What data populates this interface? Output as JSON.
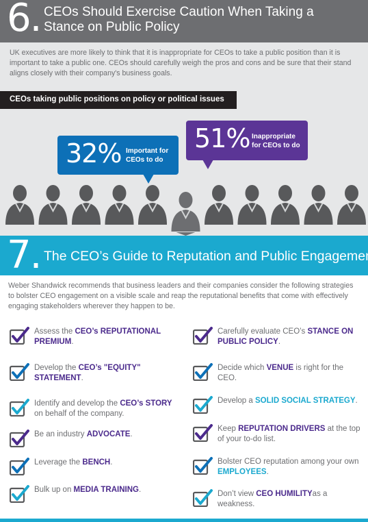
{
  "section6": {
    "number": "6.",
    "title": "CEOs Should Exercise Caution When Taking a Stance on Public Policy",
    "intro": "UK executives are more likely to think that it is inappropriate for CEOs to take a public position than it is important to take a public one. CEOs should carefully weigh the pros and cons and be sure that their stand aligns closely with their company's business goals.",
    "bar_label": "CEOs taking public positions on policy or political issues",
    "important": {
      "percent": "32%",
      "label_line1": "Important for",
      "label_line2": "CEOs to do",
      "color": "#0d70b7"
    },
    "inappropriate": {
      "percent": "51%",
      "label_line1": "Inappropriate",
      "label_line2": "for CEOs to do",
      "color": "#5b3596"
    },
    "people_count": 11
  },
  "section7": {
    "number": "7.",
    "title": "The CEO’s Guide to Reputation and Public Engagement",
    "intro": "Weber Shandwick recommends that business leaders and their companies consider the following strategies to bolster CEO engagement on a visible scale and reap the reputational benefits that come with effectively engaging stakeholders wherever they happen to be.",
    "left": [
      {
        "pre": "Assess the ",
        "hl": "CEO’s REPUTATIONAL PREMIUM",
        "post": "."
      },
      {
        "pre": "Develop the ",
        "hl": "CEO’s \"EQUITY\" STATEMENT",
        "post": "."
      },
      {
        "pre": "Identify and develop the ",
        "hl": "CEO’s STORY",
        "post": " on behalf of the company."
      },
      {
        "pre": "Be an industry ",
        "hl": "ADVOCATE",
        "post": "."
      },
      {
        "pre": " Leverage the ",
        "hl": "BENCH",
        "post": "."
      },
      {
        "pre": "Bulk up on ",
        "hl": "MEDIA TRAINING",
        "post": "."
      }
    ],
    "right": [
      {
        "pre": "Carefully evaluate CEO’s ",
        "hl": "STANCE ON PUBLIC POLICY",
        "post": "."
      },
      {
        "pre": "Decide which ",
        "hl": "VENUE",
        "post": " is right for the CEO."
      },
      {
        "pre": "Develop a ",
        "hl": "SOLID SOCIAL STRATEGY",
        "post": "."
      },
      {
        "pre": "Keep ",
        "hl": "REPUTATION DRIVERS",
        "post": " at the top of your to-do list."
      },
      {
        "pre": "Bolster CEO reputation among your own ",
        "hl": "EMPLOYEES",
        "post": "."
      },
      {
        "pre": "Don’t view ",
        "hl": "CEO HUMILITY",
        "post": "as a weakness."
      }
    ]
  },
  "colors": {
    "gray_header": "#6d6e71",
    "teal": "#1ba9cf",
    "purple": "#4b2a8c",
    "blue": "#0d70b7",
    "dark_bar": "#231f20"
  }
}
